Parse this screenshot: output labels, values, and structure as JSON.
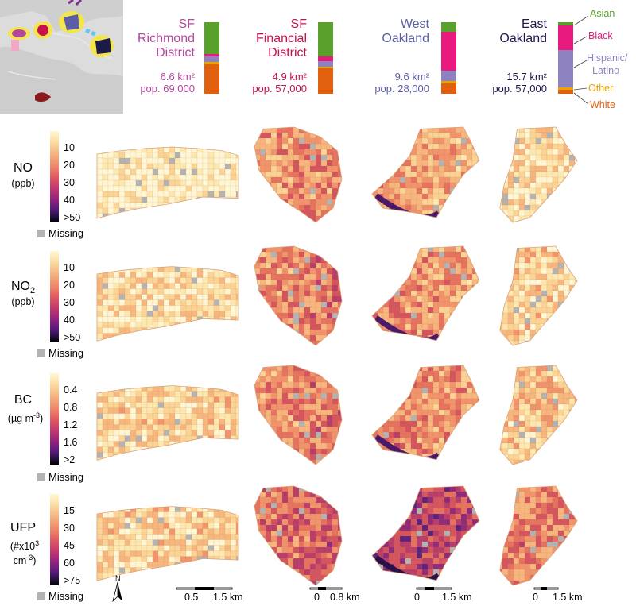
{
  "colors": {
    "richmond": "#b5479e",
    "financial": "#c8104f",
    "west_oakland": "#5b5ea6",
    "east_oakland": "#1c1a4a",
    "asian": "#5aa02c",
    "black": "#e8197f",
    "hispanic": "#8e83c0",
    "other": "#e8a400",
    "white": "#e06010"
  },
  "neighborhoods": [
    {
      "id": "richmond",
      "name_line1": "SF",
      "name_line2": "Richmond",
      "name_line3": "District",
      "area": "6.6 km²",
      "pop": "pop. 69,000",
      "composition": {
        "asian": 0.44,
        "black": 0.04,
        "hispanic": 0.08,
        "other": 0.03,
        "white": 0.41
      }
    },
    {
      "id": "financial",
      "name_line1": "SF",
      "name_line2": "Financial",
      "name_line3": "District",
      "area": "4.9 km²",
      "pop": "pop. 57,000",
      "composition": {
        "asian": 0.48,
        "black": 0.07,
        "hispanic": 0.07,
        "other": 0.03,
        "white": 0.35
      }
    },
    {
      "id": "west_oakland",
      "name_line1": "West",
      "name_line2": "Oakland",
      "name_line3": "",
      "area": "9.6 km²",
      "pop": "pop. 28,000",
      "composition": {
        "asian": 0.13,
        "black": 0.55,
        "hispanic": 0.14,
        "other": 0.04,
        "white": 0.14
      }
    },
    {
      "id": "east_oakland",
      "name_line1": "East",
      "name_line2": "Oakland",
      "name_line3": "",
      "area": "15.7 km²",
      "pop": "pop. 57,000",
      "composition": {
        "asian": 0.04,
        "black": 0.35,
        "hispanic": 0.52,
        "other": 0.04,
        "white": 0.05
      }
    }
  ],
  "legend": {
    "asian": "Asian",
    "black": "Black",
    "hispanic_1": "Hispanic/",
    "hispanic_2": "Latino",
    "other": "Other",
    "white": "White"
  },
  "pollutants": [
    {
      "id": "no",
      "label": "NO",
      "unit": "(ppb)",
      "ticks": [
        "10",
        "20",
        "30",
        "40",
        ">50"
      ],
      "missing": "Missing"
    },
    {
      "id": "no2",
      "label": "NO",
      "sub": "2",
      "unit": "(ppb)",
      "ticks": [
        "10",
        "20",
        "30",
        "40",
        ">50"
      ],
      "missing": "Missing"
    },
    {
      "id": "bc",
      "label": "BC",
      "unit": "(µg m",
      "unit_sup": "-3",
      "unit_end": ")",
      "ticks": [
        "0.4",
        "0.8",
        "1.2",
        "1.6",
        ">2"
      ],
      "missing": "Missing"
    },
    {
      "id": "ufp",
      "label": "UFP",
      "unit": "(#x10",
      "unit_sup": "3",
      "unit2": "cm",
      "unit2_sup": "-3",
      "unit2_end": ")",
      "ticks": [
        "15",
        "30",
        "45",
        "60",
        ">75"
      ],
      "missing": "Missing"
    }
  ],
  "north": "N",
  "scalebars": [
    {
      "a": "0.5",
      "b": "1.5 km"
    },
    {
      "a": "0",
      "b": "0.8 km"
    },
    {
      "a": "0",
      "b": "1.5 km"
    },
    {
      "a": "0",
      "b": "1.5 km"
    }
  ]
}
